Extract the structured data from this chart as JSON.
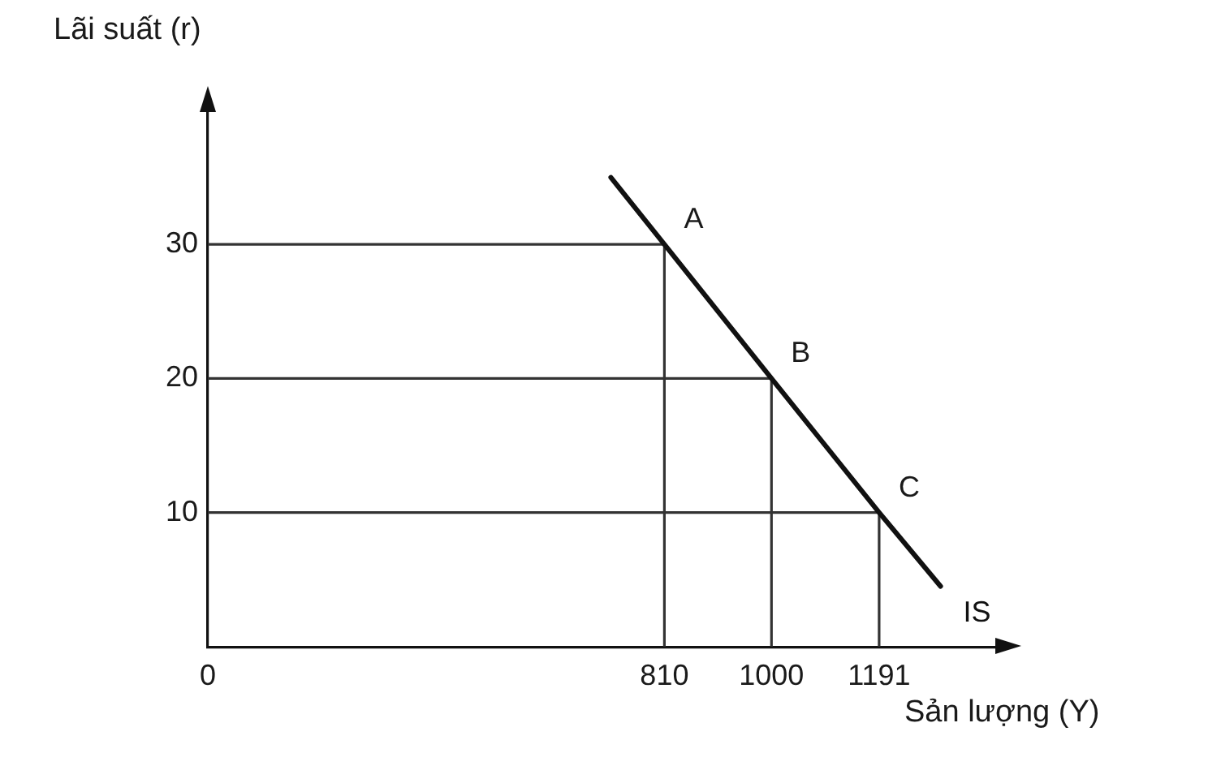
{
  "chart_data": {
    "type": "line",
    "xlabel": "Sản lượng (Y)",
    "ylabel": "Lãi suất (r)",
    "xlim": [
      0,
      1400
    ],
    "ylim": [
      0,
      40
    ],
    "xticks": [
      0,
      810,
      1000,
      1191
    ],
    "yticks": [
      10,
      20,
      30
    ],
    "marker": "none",
    "series": [
      {
        "name": "IS",
        "color": "#111111",
        "x": [
          715,
          810,
          1000,
          1191,
          1300
        ],
        "values": [
          35,
          30,
          20,
          10,
          4.5
        ]
      },
      {
        "color": "#333333",
        "x": [
          0,
          810,
          810
        ],
        "values": [
          30,
          30,
          0
        ]
      },
      {
        "color": "#333333",
        "x": [
          0,
          1000,
          1000
        ],
        "values": [
          20,
          20,
          0
        ]
      },
      {
        "color": "#333333",
        "x": [
          0,
          1191,
          1191
        ],
        "values": [
          10,
          10,
          0
        ]
      }
    ],
    "annotations": [
      {
        "text": "A",
        "x": 810,
        "y": 30
      },
      {
        "text": "B",
        "x": 1000,
        "y": 20
      },
      {
        "text": "C",
        "x": 1191,
        "y": 10
      }
    ]
  }
}
